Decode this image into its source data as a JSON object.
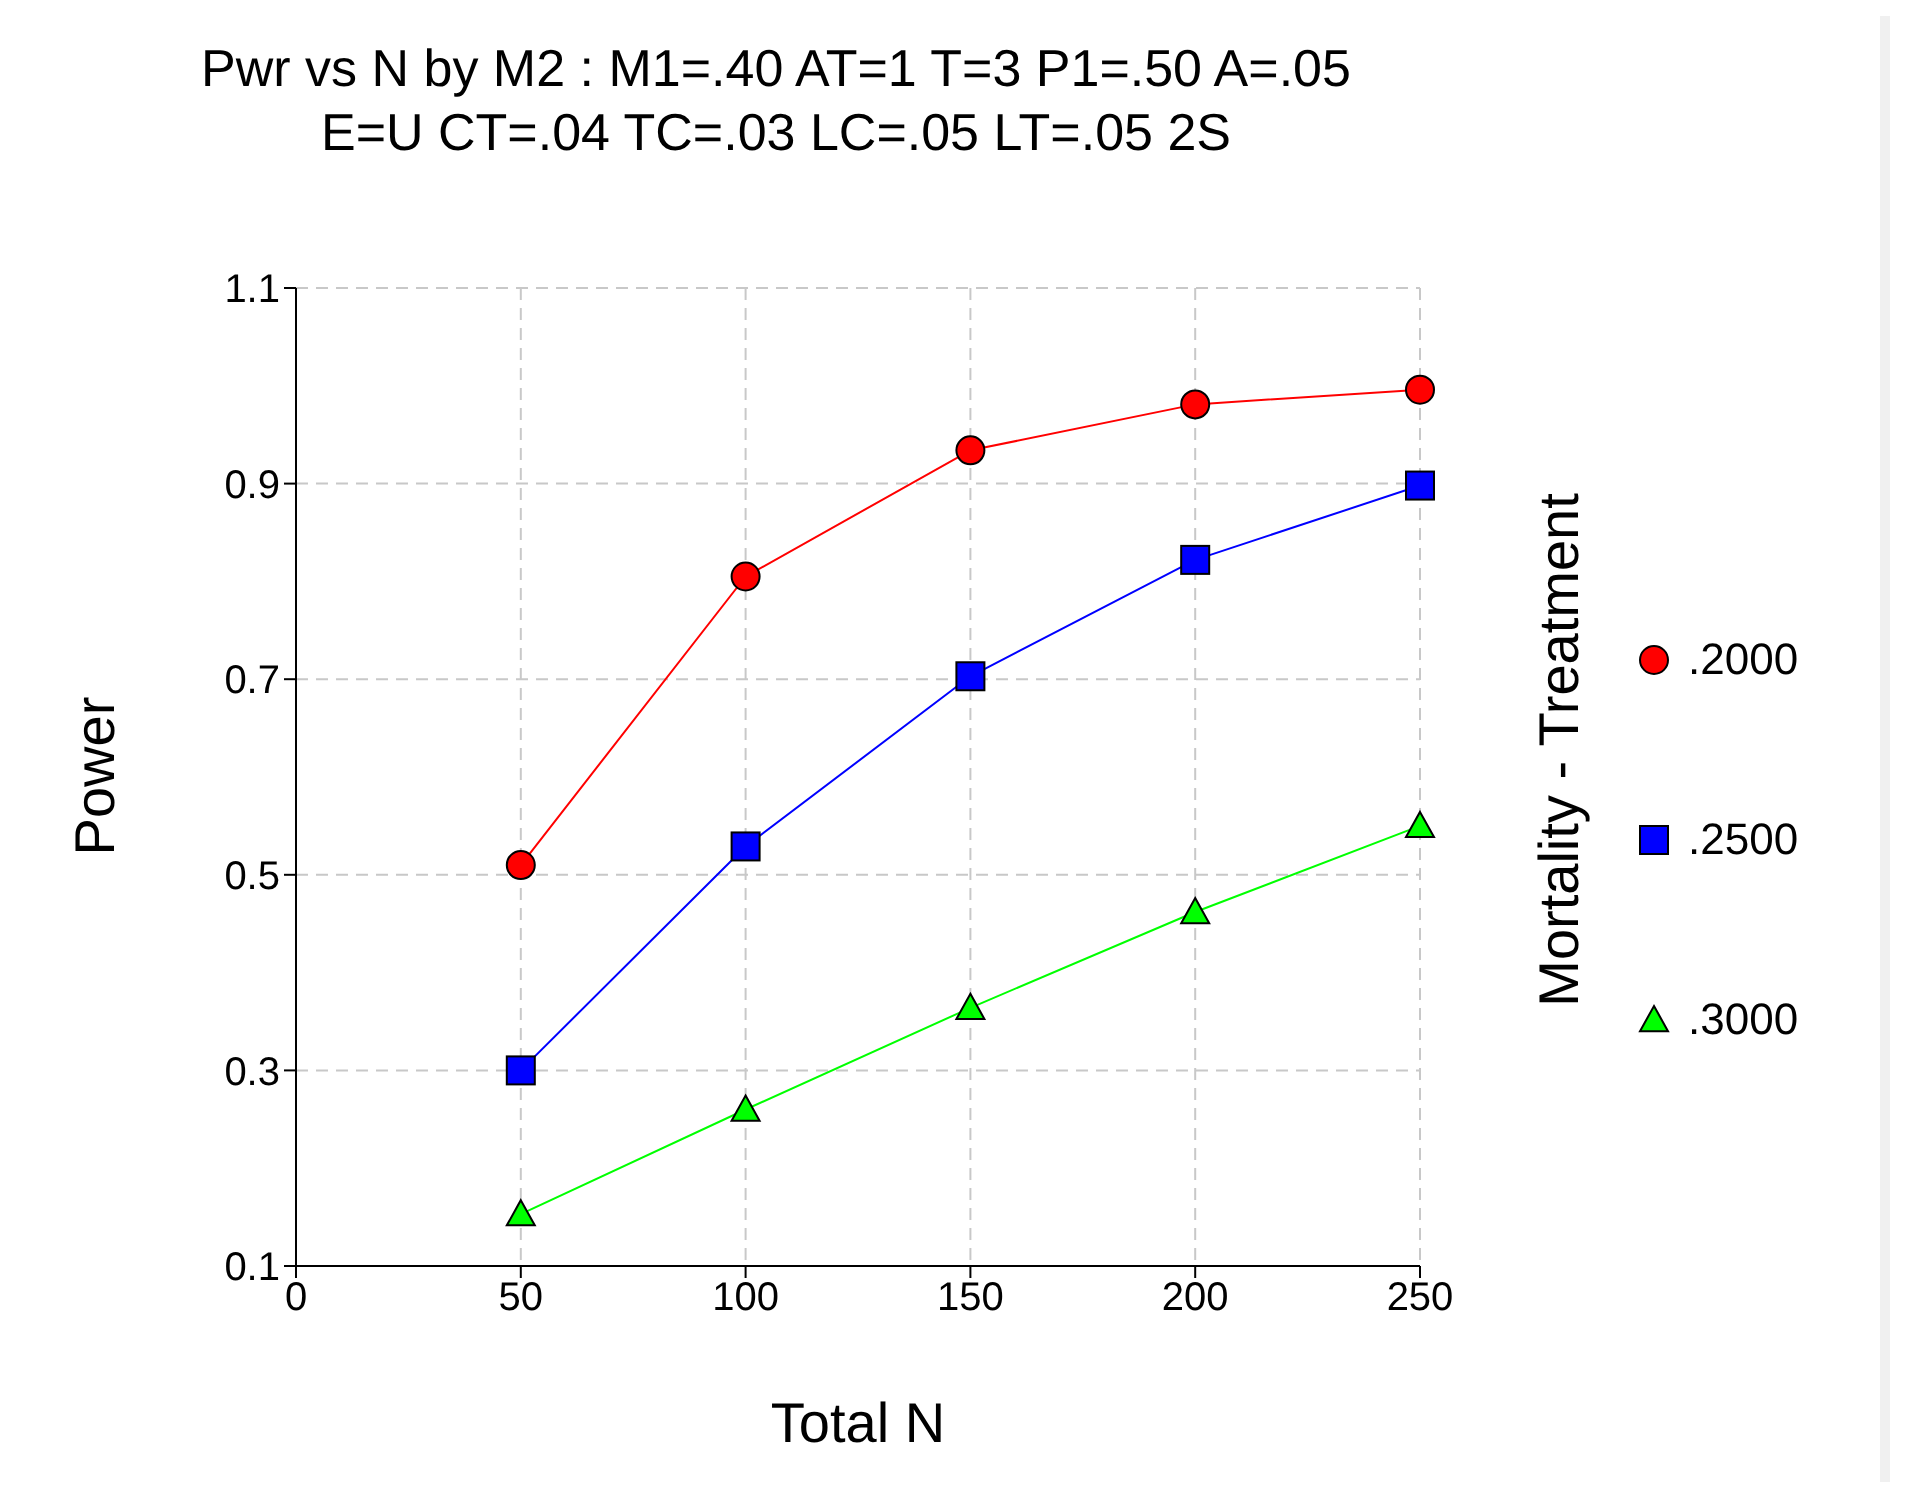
{
  "chart_data": {
    "type": "line",
    "title": "Pwr vs N by M2 : M1=.40 AT=1 T=3 P1=.50 A=.05\nE=U CT=.04 TC=.03 LC=.05 LT=.05 2S",
    "xlabel": "Total N",
    "ylabel": "Power",
    "legend_title": "Mortality - Treatment",
    "x": [
      50,
      100,
      150,
      200,
      250
    ],
    "series": [
      {
        "name": ".2000",
        "color": "#ff0000",
        "marker": "circle",
        "values": [
          0.51,
          0.805,
          0.934,
          0.981,
          0.996
        ]
      },
      {
        "name": ".2500",
        "color": "#0000ff",
        "marker": "square",
        "values": [
          0.3,
          0.529,
          0.703,
          0.822,
          0.898
        ]
      },
      {
        "name": ".3000",
        "color": "#00ff00",
        "marker": "triangle",
        "values": [
          0.153,
          0.26,
          0.364,
          0.462,
          0.55
        ]
      }
    ],
    "xlim": [
      0,
      250
    ],
    "xticks": [
      0,
      50,
      100,
      150,
      200,
      250
    ],
    "ylim": [
      0.1,
      1.1
    ],
    "yticks": [
      0.1,
      0.3,
      0.5,
      0.7,
      0.9,
      1.1
    ],
    "grid": true,
    "legend": "right"
  }
}
